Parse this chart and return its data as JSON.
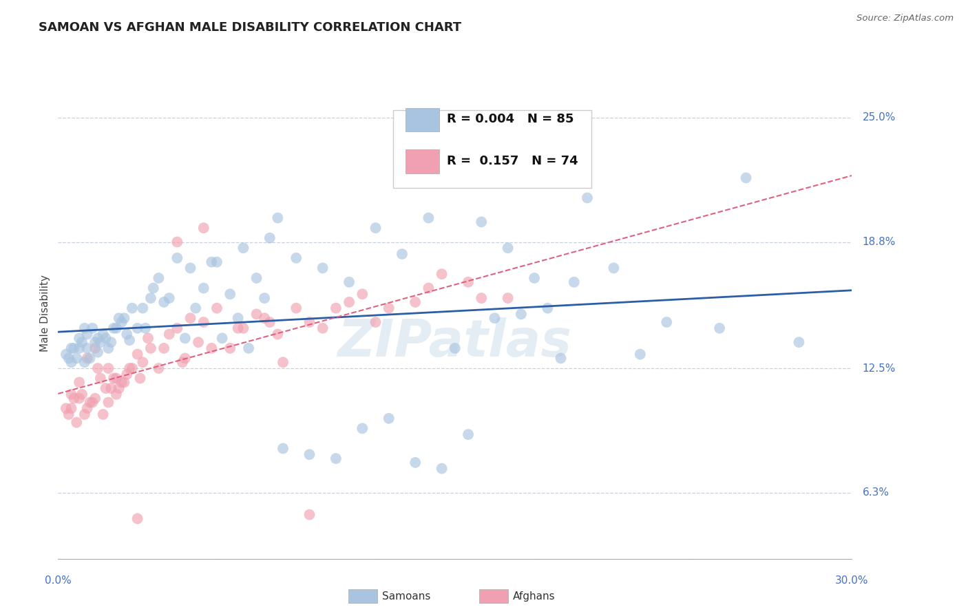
{
  "title": "SAMOAN VS AFGHAN MALE DISABILITY CORRELATION CHART",
  "source": "Source: ZipAtlas.com",
  "ylabel": "Male Disability",
  "ytick_labels": [
    "6.3%",
    "12.5%",
    "18.8%",
    "25.0%"
  ],
  "ytick_values": [
    6.3,
    12.5,
    18.8,
    25.0
  ],
  "xmin": 0.0,
  "xmax": 30.0,
  "ymin": 3.0,
  "ymax": 27.5,
  "samoan_R": "0.004",
  "samoan_N": "85",
  "afghan_R": "0.157",
  "afghan_N": "74",
  "samoan_color": "#a8c4e0",
  "afghan_color": "#f0a0b0",
  "samoan_trend_color": "#2b5ea7",
  "afghan_trend_color": "#e06080",
  "background_color": "#ffffff",
  "grid_color": "#c8d0dc",
  "watermark": "ZIPatlas",
  "legend_samoan_label": "Samoans",
  "legend_afghan_label": "Afghans",
  "samoan_x": [
    0.3,
    0.4,
    0.5,
    0.5,
    0.6,
    0.7,
    0.8,
    0.8,
    0.9,
    1.0,
    1.0,
    1.1,
    1.1,
    1.2,
    1.3,
    1.4,
    1.5,
    1.5,
    1.6,
    1.7,
    1.8,
    1.9,
    2.0,
    2.1,
    2.2,
    2.3,
    2.4,
    2.5,
    2.6,
    2.7,
    2.8,
    3.0,
    3.2,
    3.5,
    3.8,
    4.0,
    4.5,
    5.0,
    5.5,
    5.8,
    6.0,
    6.5,
    7.0,
    7.5,
    8.0,
    9.0,
    10.0,
    11.0,
    12.0,
    13.0,
    14.0,
    15.0,
    16.0,
    17.0,
    18.0,
    19.0,
    20.0,
    22.0,
    25.0,
    28.0,
    3.3,
    3.6,
    4.2,
    4.8,
    5.2,
    6.2,
    6.8,
    7.2,
    7.8,
    8.5,
    9.5,
    10.5,
    11.5,
    12.5,
    13.5,
    14.5,
    15.5,
    16.5,
    17.5,
    18.5,
    19.5,
    21.0,
    23.0,
    26.0,
    8.3
  ],
  "samoan_y": [
    13.2,
    13.0,
    13.5,
    12.8,
    13.5,
    13.0,
    13.5,
    14.0,
    13.8,
    12.8,
    14.5,
    13.5,
    14.2,
    13.0,
    14.5,
    13.8,
    13.3,
    14.0,
    13.8,
    14.2,
    14.0,
    13.5,
    13.8,
    14.5,
    14.5,
    15.0,
    14.8,
    15.0,
    14.2,
    13.9,
    15.5,
    14.5,
    15.5,
    16.0,
    17.0,
    15.8,
    18.0,
    17.5,
    16.5,
    17.8,
    17.8,
    16.2,
    18.5,
    17.0,
    19.0,
    18.0,
    17.5,
    16.8,
    19.5,
    18.2,
    20.0,
    13.5,
    19.8,
    18.5,
    17.0,
    13.0,
    21.0,
    13.2,
    14.5,
    13.8,
    14.5,
    16.5,
    16.0,
    14.0,
    15.5,
    14.0,
    15.0,
    13.5,
    16.0,
    8.5,
    8.2,
    8.0,
    9.5,
    10.0,
    7.8,
    7.5,
    9.2,
    15.0,
    15.2,
    15.5,
    16.8,
    17.5,
    14.8,
    22.0,
    20.0
  ],
  "afghan_x": [
    0.3,
    0.4,
    0.5,
    0.6,
    0.7,
    0.8,
    0.9,
    1.0,
    1.1,
    1.2,
    1.3,
    1.4,
    1.5,
    1.6,
    1.7,
    1.8,
    1.9,
    2.0,
    2.1,
    2.2,
    2.3,
    2.4,
    2.5,
    2.6,
    2.7,
    2.8,
    3.0,
    3.2,
    3.5,
    3.8,
    4.0,
    4.5,
    5.0,
    5.5,
    6.0,
    6.5,
    7.0,
    7.5,
    8.0,
    9.0,
    10.0,
    11.0,
    12.0,
    14.0,
    17.0,
    0.5,
    0.8,
    1.1,
    1.4,
    1.9,
    2.2,
    3.1,
    3.4,
    4.2,
    4.8,
    5.8,
    6.8,
    7.8,
    8.5,
    9.5,
    10.5,
    12.5,
    15.5,
    4.7,
    5.3,
    8.3,
    11.5,
    13.5,
    14.5,
    16.0,
    3.0,
    9.5,
    4.5,
    5.5
  ],
  "afghan_y": [
    10.5,
    10.2,
    10.5,
    11.0,
    9.8,
    11.0,
    11.2,
    10.2,
    10.5,
    10.8,
    10.8,
    11.0,
    12.5,
    12.0,
    10.2,
    11.5,
    10.8,
    11.5,
    12.0,
    12.0,
    11.5,
    11.8,
    11.8,
    12.2,
    12.5,
    12.5,
    13.2,
    12.8,
    13.5,
    12.5,
    13.5,
    14.5,
    15.0,
    14.8,
    15.5,
    13.5,
    14.5,
    15.2,
    14.8,
    15.5,
    14.5,
    15.8,
    14.8,
    16.5,
    16.0,
    11.2,
    11.8,
    13.0,
    13.5,
    12.5,
    11.2,
    12.0,
    14.0,
    14.2,
    13.0,
    13.5,
    14.5,
    15.0,
    12.8,
    14.8,
    15.5,
    15.5,
    16.8,
    12.8,
    13.8,
    14.2,
    16.2,
    15.8,
    17.2,
    16.0,
    5.0,
    5.2,
    18.8,
    19.5
  ]
}
